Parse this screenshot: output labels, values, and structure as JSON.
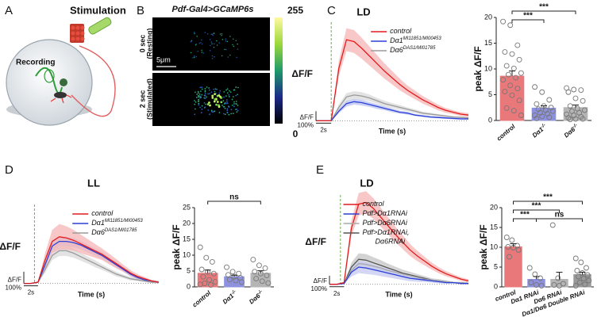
{
  "figure": {
    "panel_a": {
      "letter": "A",
      "stimulation": "Stimulation",
      "recording": "Recording"
    },
    "panel_b": {
      "letter": "B",
      "title": "Pdf-Gal4>GCaMP6s",
      "colorbar_max": 255,
      "colorbar_min": 0,
      "rows": [
        {
          "time": "0 sec",
          "state": "(Resting)"
        },
        {
          "time": "2 sec",
          "state": "(Stimulated)"
        }
      ],
      "scale_bar": "5μm"
    }
  },
  "chart_data": [
    {
      "type": "line",
      "panel": "C",
      "title": "LD",
      "ylabel": "ΔF/F",
      "xlabel": "Time (s)",
      "legend": "upper right",
      "x": [
        0,
        1,
        2,
        3,
        4,
        5,
        6,
        7,
        8,
        9,
        10,
        11,
        12,
        13,
        14,
        15,
        16,
        17,
        18,
        19,
        20
      ],
      "xlim": [
        0,
        20
      ],
      "ylim": [
        -0.3,
        10
      ],
      "stimulus_x": 2,
      "stimulus_color": "#6ab04c",
      "scale_bar": {
        "y_name": "ΔF/F",
        "y": {
          "value": 1,
          "label": "100%"
        },
        "x": {
          "value": 2,
          "label": "2s"
        }
      },
      "series": [
        {
          "name": "control",
          "color": "#e31a1c",
          "band_color": "#f5b5b5",
          "values": [
            0,
            0,
            0,
            5.5,
            8.5,
            8.3,
            7.6,
            6.8,
            6.0,
            5.2,
            4.5,
            3.8,
            3.2,
            2.7,
            2.2,
            1.8,
            1.4,
            1.1,
            0.9,
            0.7,
            0.6
          ],
          "errors": [
            0,
            0,
            0,
            0.8,
            1.2,
            1.2,
            1.1,
            1.0,
            0.9,
            0.8,
            0.7,
            0.6,
            0.5,
            0.45,
            0.4,
            0.35,
            0.3,
            0.25,
            0.2,
            0.2,
            0.2
          ]
        },
        {
          "name": "Dα1",
          "name_sup": "MI11851/MI00453",
          "color": "#2c3fd6",
          "band_color": "#b8c0f0",
          "values": [
            0,
            0,
            0,
            1.0,
            1.8,
            2.0,
            1.9,
            1.7,
            1.5,
            1.3,
            1.1,
            0.9,
            0.8,
            0.6,
            0.5,
            0.4,
            0.35,
            0.3,
            0.25,
            0.2,
            0.2
          ],
          "errors": [
            0,
            0,
            0,
            0.2,
            0.3,
            0.3,
            0.3,
            0.25,
            0.25,
            0.2,
            0.2,
            0.15,
            0.15,
            0.1,
            0.1,
            0.1,
            0.1,
            0.1,
            0.1,
            0.1,
            0.1
          ]
        },
        {
          "name": "Dα6",
          "name_sup": "DAS1/MI01785",
          "color": "#9a9a9a",
          "band_color": "#d9d9d9",
          "values": [
            0,
            0,
            0,
            1.4,
            2.5,
            2.7,
            2.6,
            2.4,
            2.1,
            1.8,
            1.6,
            1.4,
            1.2,
            1.0,
            0.8,
            0.7,
            0.6,
            0.5,
            0.4,
            0.35,
            0.3
          ],
          "errors": [
            0,
            0,
            0,
            0.3,
            0.4,
            0.4,
            0.4,
            0.35,
            0.3,
            0.3,
            0.25,
            0.25,
            0.2,
            0.2,
            0.15,
            0.15,
            0.1,
            0.1,
            0.1,
            0.1,
            0.1
          ]
        }
      ]
    },
    {
      "type": "bar",
      "ylabel": "peak ΔF/F",
      "categories": [
        "control",
        "Dα1",
        "Dα6"
      ],
      "category_sups": [
        null,
        "-/-",
        "-/-"
      ],
      "values": [
        8.6,
        2.4,
        2.5
      ],
      "errors": [
        1.0,
        0.45,
        0.5
      ],
      "colors": [
        "#e8787a",
        "#8e92de",
        "#b5b5b5"
      ],
      "points": [
        [
          19.2,
          18.5,
          14.6,
          13.3,
          12.9,
          11.8,
          10.6,
          10.1,
          9.2,
          8.9,
          8.3,
          7.9,
          6.8,
          6.2,
          5.6,
          4.9,
          3.9,
          2.4,
          1.9,
          1.0
        ],
        [
          6.5,
          5.5,
          4.0,
          3.2,
          2.8,
          2.5,
          2.2,
          2.0,
          1.8,
          1.5,
          1.3,
          1.0,
          0.8,
          0.6,
          0.4
        ],
        [
          6.3,
          6.0,
          5.9,
          5.5,
          4.3,
          3.8,
          2.8,
          2.3,
          2.0,
          1.8,
          1.5,
          1.2,
          1.0,
          0.7,
          0.5,
          0.3,
          0.3,
          0.2
        ]
      ],
      "ylim": [
        0,
        20
      ],
      "yticks": [
        0,
        5,
        10,
        15,
        20
      ],
      "comparisons": [
        {
          "groups": [
            0,
            2
          ],
          "label": "***"
        },
        {
          "groups": [
            0,
            1
          ],
          "label": "***"
        }
      ]
    },
    {
      "type": "line",
      "panel": "D",
      "title": "LL",
      "ylabel": "ΔF/F",
      "xlabel": "Time (s)",
      "legend": "upper right",
      "x": [
        0,
        1,
        2,
        3,
        4,
        5,
        6,
        7,
        8,
        9,
        10,
        11,
        12,
        13,
        14,
        15,
        16,
        17,
        18,
        19
      ],
      "xlim": [
        0,
        19
      ],
      "ylim": [
        -0.3,
        6.5
      ],
      "stimulus_x": 1.5,
      "stimulus_color": "#6ab04c",
      "scale_bar": {
        "y_name": "ΔF/F",
        "y": {
          "value": 1,
          "label": "100%"
        },
        "x": {
          "value": 2,
          "label": "2s"
        }
      },
      "series": [
        {
          "name": "control",
          "color": "#e31a1c",
          "band_color": "#f5b5b5",
          "values": [
            0,
            0,
            0.1,
            2.0,
            3.6,
            4.0,
            3.9,
            3.7,
            3.4,
            3.1,
            2.8,
            2.5,
            2.1,
            1.7,
            1.3,
            0.9,
            0.6,
            0.4,
            0.2,
            0.1
          ],
          "errors": [
            0,
            0,
            0.05,
            0.6,
            1.0,
            1.1,
            1.0,
            0.9,
            0.8,
            0.7,
            0.6,
            0.5,
            0.45,
            0.4,
            0.3,
            0.25,
            0.2,
            0.15,
            0.1,
            0.1
          ]
        },
        {
          "name": "Dα1",
          "name_sup": "MI11851/MI00453",
          "color": "#2c3fd6",
          "band_color": "#b8c0f0",
          "values": [
            0,
            0,
            0.1,
            1.6,
            3.2,
            3.6,
            3.6,
            3.5,
            3.3,
            3.0,
            2.7,
            2.4,
            2.0,
            1.6,
            1.2,
            0.8,
            0.5,
            0.3,
            0.2,
            0.1
          ],
          "errors": [
            0,
            0,
            0.05,
            0.3,
            0.4,
            0.4,
            0.4,
            0.4,
            0.35,
            0.35,
            0.3,
            0.3,
            0.25,
            0.25,
            0.2,
            0.2,
            0.15,
            0.1,
            0.1,
            0.1
          ]
        },
        {
          "name": "Dα6",
          "name_sup": "DAS1/MI01785",
          "color": "#9a9a9a",
          "band_color": "#d9d9d9",
          "values": [
            0,
            0,
            0.1,
            1.2,
            2.4,
            2.8,
            2.8,
            2.6,
            2.3,
            2.0,
            1.7,
            1.4,
            1.1,
            0.8,
            0.6,
            0.4,
            0.3,
            0.2,
            0.1,
            0.1
          ],
          "errors": [
            0,
            0,
            0.05,
            0.3,
            0.4,
            0.45,
            0.45,
            0.4,
            0.35,
            0.3,
            0.3,
            0.25,
            0.2,
            0.2,
            0.15,
            0.15,
            0.1,
            0.1,
            0.1,
            0.1
          ]
        }
      ]
    },
    {
      "type": "bar",
      "ylabel": "peak ΔF/F",
      "categories": [
        "control",
        "Dα1",
        "Dα6"
      ],
      "category_sups": [
        null,
        "-/-",
        "-/-"
      ],
      "values": [
        4.3,
        3.2,
        4.3
      ],
      "errors": [
        1.0,
        0.5,
        0.8
      ],
      "colors": [
        "#e8787a",
        "#8e92de",
        "#b5b5b5"
      ],
      "points": [
        [
          12.5,
          9.2,
          7.9,
          5.5,
          4.7,
          4.2,
          3.2,
          2.2,
          1.6,
          1.1,
          0.6,
          0.8
        ],
        [
          6.2,
          4.8,
          4.2,
          3.8,
          3.2,
          2.9,
          2.3,
          2.0,
          1.5
        ],
        [
          8.6,
          6.8,
          5.9,
          4.8,
          4.2,
          3.6,
          2.6,
          1.8,
          1.2
        ]
      ],
      "ylim": [
        0,
        25
      ],
      "yticks": [
        0,
        5,
        10,
        15,
        20,
        25
      ],
      "comparisons": [
        {
          "groups": [
            0,
            2
          ],
          "label": "ns"
        }
      ]
    },
    {
      "type": "line",
      "panel": "E",
      "title": "LD",
      "ylabel": "ΔF/F",
      "xlabel": "Time (s)",
      "legend": "upper left",
      "x": [
        0,
        1,
        2,
        3,
        4,
        5,
        6,
        7,
        8,
        9,
        10,
        11,
        12,
        13,
        14,
        15,
        16,
        17,
        18,
        19
      ],
      "xlim": [
        0,
        19
      ],
      "ylim": [
        -0.3,
        10
      ],
      "stimulus_x": 1.5,
      "stimulus_color": "#6ab04c",
      "scale_bar": {
        "y_name": "ΔF/F",
        "y": {
          "value": 1,
          "label": "100%"
        },
        "x": {
          "value": 2,
          "label": "2s"
        }
      },
      "series": [
        {
          "name": "control",
          "color": "#e31a1c",
          "band_color": "#f5b5b5",
          "values": [
            0,
            0,
            0.2,
            6.5,
            9.3,
            9.5,
            8.8,
            7.8,
            6.8,
            5.8,
            4.9,
            4.0,
            3.3,
            2.7,
            2.1,
            1.6,
            1.2,
            0.9,
            0.6,
            0.4
          ],
          "errors": [
            0,
            0,
            0.1,
            0.9,
            1.3,
            1.3,
            1.2,
            1.1,
            1.0,
            0.9,
            0.8,
            0.7,
            0.6,
            0.5,
            0.4,
            0.35,
            0.3,
            0.25,
            0.2,
            0.2
          ]
        },
        {
          "name": "Pdf>Dα1RNAi",
          "color": "#2c3fd6",
          "band_color": "#c4caf2",
          "values": [
            0,
            0,
            0.1,
            1.4,
            2.0,
            1.9,
            1.7,
            1.5,
            1.3,
            1.1,
            0.9,
            0.7,
            0.6,
            0.5,
            0.4,
            0.3,
            0.2,
            0.2,
            0.1,
            0.1
          ],
          "errors": [
            0,
            0,
            0.05,
            0.5,
            0.7,
            0.7,
            0.6,
            0.55,
            0.5,
            0.45,
            0.4,
            0.35,
            0.3,
            0.25,
            0.2,
            0.2,
            0.15,
            0.1,
            0.1,
            0.1
          ]
        },
        {
          "name": "Pdf>Dα6RNAi",
          "color": "#a8a8a8",
          "band_color": "#dedede",
          "values": [
            0,
            0,
            0.1,
            1.6,
            2.4,
            2.3,
            2.1,
            1.9,
            1.6,
            1.4,
            1.2,
            1.0,
            0.8,
            0.6,
            0.5,
            0.4,
            0.3,
            0.2,
            0.2,
            0.1
          ],
          "errors": [
            0,
            0,
            0.05,
            0.4,
            0.6,
            0.6,
            0.55,
            0.5,
            0.45,
            0.4,
            0.35,
            0.3,
            0.25,
            0.2,
            0.2,
            0.15,
            0.1,
            0.1,
            0.1,
            0.1
          ]
        },
        {
          "name": "Pdf>Dα1RNAi,",
          "name_line2": "Dα6RNAi",
          "color": "#555555",
          "band_color": "#c4c4c4",
          "values": [
            0,
            0,
            0.1,
            2.0,
            2.9,
            2.8,
            2.5,
            2.2,
            1.9,
            1.6,
            1.3,
            1.1,
            0.9,
            0.7,
            0.5,
            0.4,
            0.3,
            0.2,
            0.2,
            0.1
          ],
          "errors": [
            0,
            0,
            0.05,
            0.5,
            0.7,
            0.7,
            0.65,
            0.6,
            0.5,
            0.45,
            0.4,
            0.35,
            0.3,
            0.25,
            0.2,
            0.2,
            0.15,
            0.1,
            0.1,
            0.1
          ]
        }
      ]
    },
    {
      "type": "bar",
      "ylabel": "peak ΔF/F",
      "categories": [
        "control",
        "Dα1 RNAi",
        "Dα6 RNAi",
        "Dα1/Dα6 Double RNAi"
      ],
      "values": [
        10.1,
        1.9,
        1.9,
        3.1
      ],
      "errors": [
        0.8,
        0.7,
        1.8,
        0.6
      ],
      "colors": [
        "#e8787a",
        "#8e92de",
        "#b5b5b5",
        "#9a9a9a"
      ],
      "points": [
        [
          12.5,
          11.8,
          10.4,
          10.1,
          9.9,
          9.3,
          7.6
        ],
        [
          4.8,
          3.2,
          2.2,
          1.1,
          0.5,
          0.3
        ],
        [
          15.6,
          2.2,
          0.8,
          0.5,
          0.3
        ],
        [
          7.2,
          6.2,
          4.8,
          4.1,
          3.5,
          3.0,
          2.6,
          2.1,
          1.6,
          1.1,
          0.6,
          0.3
        ]
      ],
      "ylim": [
        0,
        20
      ],
      "yticks": [
        0,
        5,
        10,
        15,
        20
      ],
      "comparisons": [
        {
          "groups": [
            0,
            3
          ],
          "label": "***"
        },
        {
          "groups": [
            0,
            2
          ],
          "label": "***"
        },
        {
          "groups": [
            0,
            1
          ],
          "label": "***"
        },
        {
          "groups": [
            1,
            3
          ],
          "label": "ns"
        }
      ]
    }
  ]
}
